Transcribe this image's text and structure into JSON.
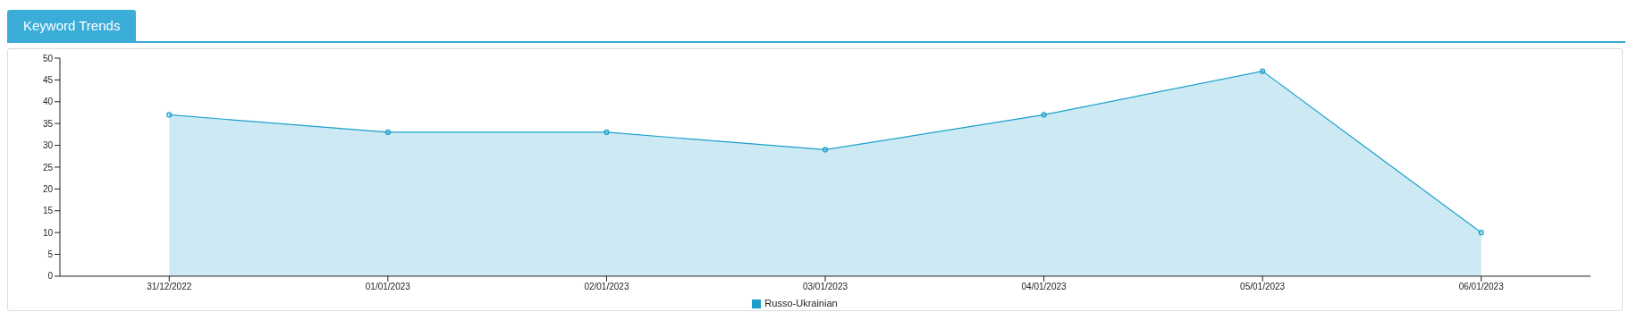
{
  "chart_data": {
    "type": "area",
    "title": "Keyword Trends",
    "categories": [
      "31/12/2022",
      "01/01/2023",
      "02/01/2023",
      "03/01/2023",
      "04/01/2023",
      "05/01/2023",
      "06/01/2023"
    ],
    "series": [
      {
        "name": "Russo-Ukrainian",
        "color": "#1a9fcc",
        "values": [
          37,
          33,
          33,
          29,
          37,
          47,
          10
        ]
      }
    ],
    "ylim": [
      0,
      50
    ],
    "yticks": [
      0,
      5,
      10,
      15,
      20,
      25,
      30,
      35,
      40,
      45,
      50
    ],
    "grid": false,
    "legend": "bottom",
    "marker": "circle"
  }
}
